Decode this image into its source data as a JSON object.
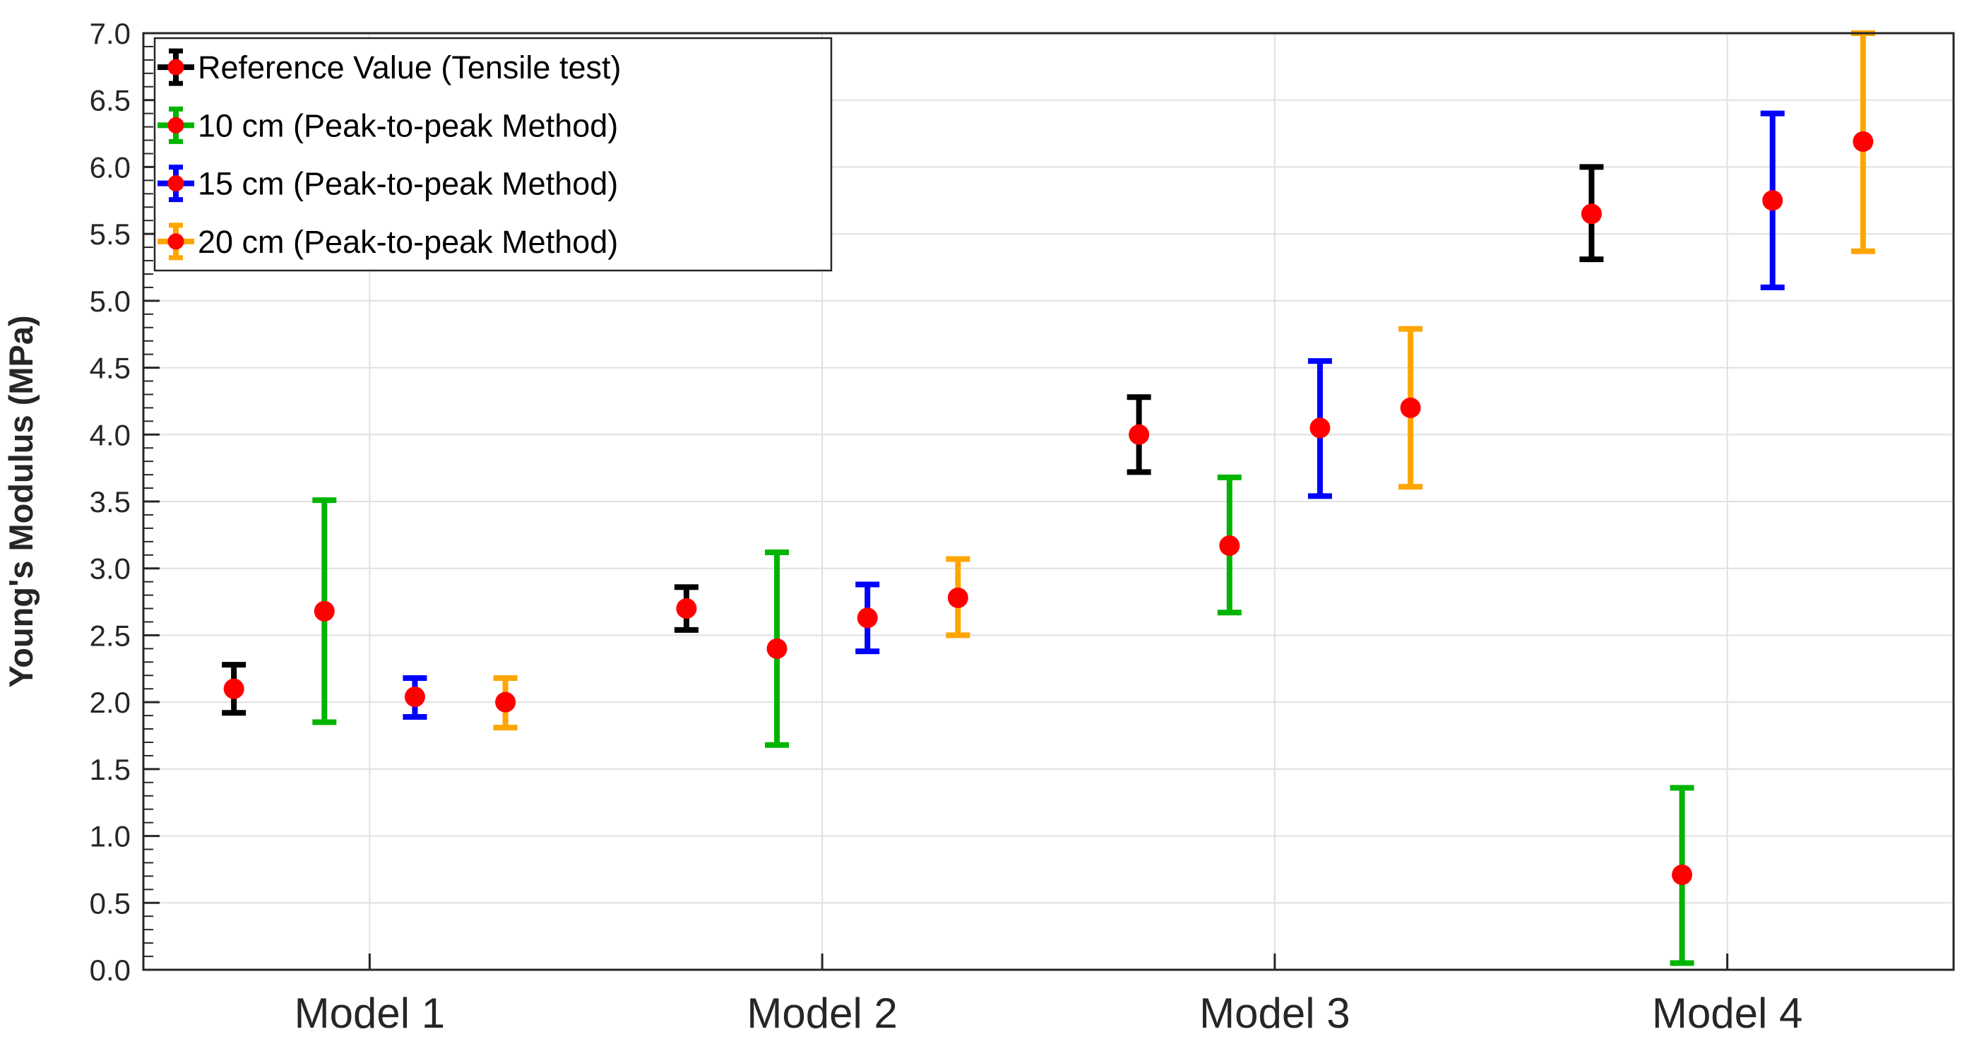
{
  "figure": {
    "background": "#FFFFFF",
    "axis_color": "#262626",
    "grid_color": "#E0E0E0",
    "marker_color": "#FF0000",
    "legend_border_color": "#262626",
    "legend_background": "#FFFFFF"
  },
  "chart_data": {
    "type": "scatter",
    "subtype": "grouped-errorbar",
    "title": "",
    "xlabel": "",
    "ylabel": "Young's Modulus (MPa)",
    "ylim": [
      0.0,
      7.0
    ],
    "ytick_step": 0.5,
    "y_minor_tick_step": 0.1,
    "grid": true,
    "legend_position": "top-left-inside",
    "categories": [
      "Model 1",
      "Model 2",
      "Model 3",
      "Model 4"
    ],
    "ytick_labels": [
      "0.0",
      "0.5",
      "1.0",
      "1.5",
      "2.0",
      "2.5",
      "3.0",
      "3.5",
      "4.0",
      "4.5",
      "5.0",
      "5.5",
      "6.0",
      "6.5",
      "7.0"
    ],
    "series": [
      {
        "name": "Reference Value (Tensile test)",
        "color": "#000000",
        "offset": -0.3,
        "values": [
          2.1,
          2.7,
          4.0,
          5.65
        ],
        "err_lo": [
          1.92,
          2.54,
          3.72,
          5.31
        ],
        "err_hi": [
          2.28,
          2.86,
          4.28,
          6.0
        ]
      },
      {
        "name": "10 cm (Peak-to-peak Method)",
        "color": "#00B400",
        "offset": -0.1,
        "values": [
          2.68,
          2.4,
          3.17,
          0.71
        ],
        "err_lo": [
          1.85,
          1.68,
          2.67,
          0.05
        ],
        "err_hi": [
          3.51,
          3.12,
          3.68,
          1.36
        ]
      },
      {
        "name": "15 cm (Peak-to-peak Method)",
        "color": "#0000FF",
        "offset": 0.1,
        "values": [
          2.04,
          2.63,
          4.05,
          5.75
        ],
        "err_lo": [
          1.89,
          2.38,
          3.54,
          5.1
        ],
        "err_hi": [
          2.18,
          2.88,
          4.55,
          6.4
        ]
      },
      {
        "name": "20 cm (Peak-to-peak Method)",
        "color": "#FFA500",
        "offset": 0.3,
        "values": [
          2.0,
          2.78,
          4.2,
          6.19
        ],
        "err_lo": [
          1.81,
          2.5,
          3.61,
          5.37
        ],
        "err_hi": [
          2.18,
          3.07,
          4.79,
          7.0
        ]
      }
    ]
  }
}
